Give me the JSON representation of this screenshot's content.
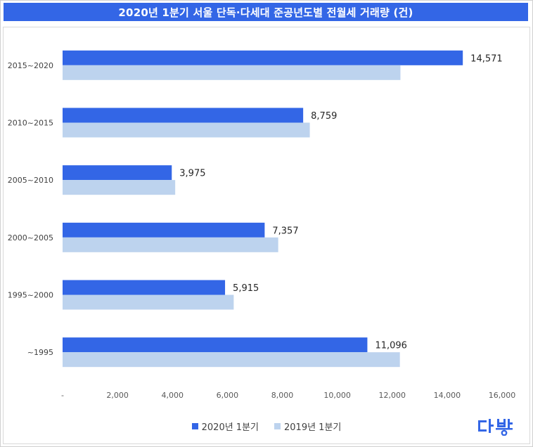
{
  "chart_data": {
    "type": "bar",
    "orientation": "horizontal",
    "title": "2020년 1분기 서울 단독·다세대 준공년도별 전월세 거래량 (건)",
    "categories": [
      "2015~2020",
      "2010~2015",
      "2005~2010",
      "2000~2005",
      "1995~2000",
      "~1995"
    ],
    "series": [
      {
        "name": "2020년 1분기",
        "color": "#3366e6",
        "values": [
          14571,
          8759,
          3975,
          7357,
          5915,
          11096
        ],
        "labels": [
          "14,571",
          "8,759",
          "3,975",
          "7,357",
          "5,915",
          "11,096"
        ]
      },
      {
        "name": "2019년 1분기",
        "color": "#bdd3ee",
        "values": [
          12300,
          9000,
          4100,
          7850,
          6230,
          12280
        ]
      }
    ],
    "xlim": [
      0,
      16000
    ],
    "xticks": [
      0,
      2000,
      4000,
      6000,
      8000,
      10000,
      12000,
      14000,
      16000
    ],
    "xtick_labels": [
      "-",
      "2,000",
      "4,000",
      "6,000",
      "8,000",
      "10,000",
      "12,000",
      "14,000",
      "16,000"
    ],
    "grid": false,
    "legend_position": "bottom"
  },
  "logo": {
    "name": "dabang-logo",
    "color": "#3366e6"
  }
}
